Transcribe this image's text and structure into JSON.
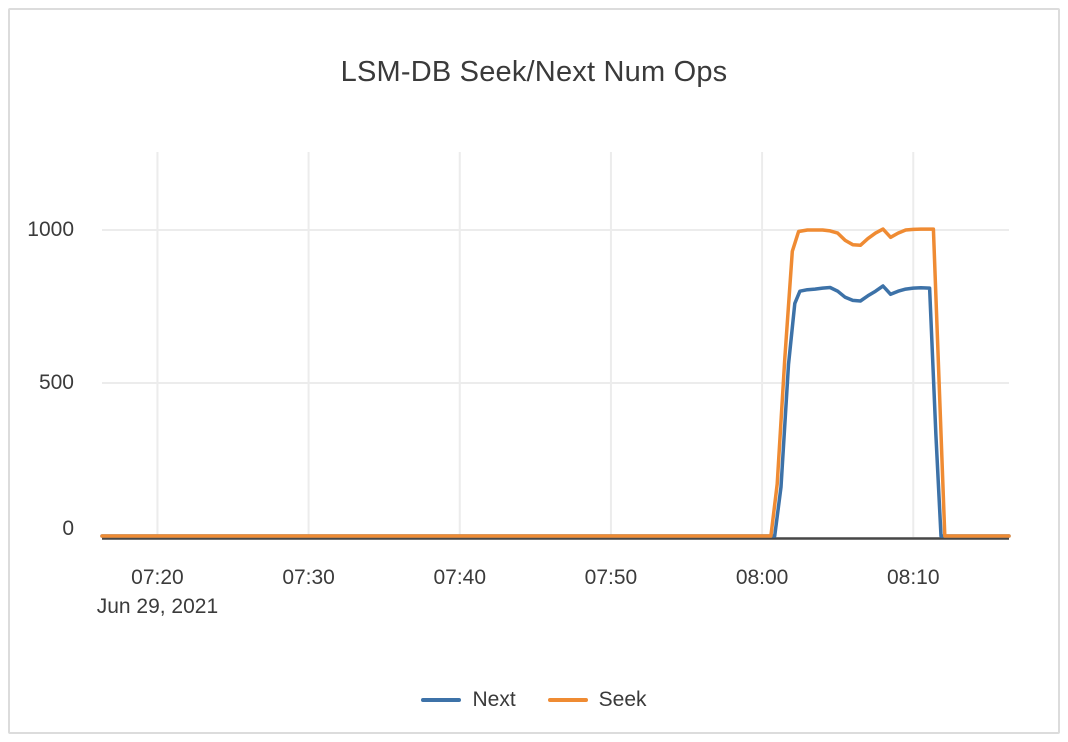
{
  "card": {
    "background": "#ffffff",
    "border_color": "#dcdcdc"
  },
  "colors": {
    "next_series": "#3D72A8",
    "seek_series": "#EF8B33",
    "grid_line": "#ececec",
    "zero_axis_line": "#474747",
    "text": "#3b3b3b"
  },
  "chart_data": {
    "type": "line",
    "title": "LSM-DB Seek/Next Num Ops",
    "xlabel": "",
    "ylabel": "",
    "grid": true,
    "legend_position": "bottom",
    "x_axis": {
      "domain": [
        "07:16:20",
        "08:16:20"
      ],
      "tick_labels": [
        "07:20",
        "07:30",
        "07:40",
        "07:50",
        "08:00",
        "08:10"
      ],
      "date_label": "Jun 29, 2021"
    },
    "y_axis": {
      "ticks": [
        0,
        500,
        1000
      ],
      "ylim": [
        0,
        1250
      ]
    },
    "series": [
      {
        "name": "Next",
        "color": "#3D72A8",
        "points": [
          [
            "07:16:20",
            0
          ],
          [
            "07:30:00",
            0
          ],
          [
            "07:45:00",
            0
          ],
          [
            "08:00:00",
            0
          ],
          [
            "08:00:50",
            0
          ],
          [
            "08:01:15",
            160
          ],
          [
            "08:01:45",
            560
          ],
          [
            "08:02:10",
            760
          ],
          [
            "08:02:30",
            800
          ],
          [
            "08:03:00",
            805
          ],
          [
            "08:03:30",
            807
          ],
          [
            "08:04:00",
            810
          ],
          [
            "08:04:30",
            812
          ],
          [
            "08:05:00",
            800
          ],
          [
            "08:05:30",
            780
          ],
          [
            "08:06:00",
            770
          ],
          [
            "08:06:30",
            768
          ],
          [
            "08:07:00",
            785
          ],
          [
            "08:07:30",
            800
          ],
          [
            "08:08:00",
            817
          ],
          [
            "08:08:30",
            790
          ],
          [
            "08:09:00",
            800
          ],
          [
            "08:09:30",
            807
          ],
          [
            "08:10:00",
            810
          ],
          [
            "08:10:30",
            811
          ],
          [
            "08:11:05",
            810
          ],
          [
            "08:11:30",
            330
          ],
          [
            "08:11:50",
            0
          ],
          [
            "08:13:00",
            0
          ],
          [
            "08:16:20",
            0
          ]
        ]
      },
      {
        "name": "Seek",
        "color": "#EF8B33",
        "points": [
          [
            "07:16:20",
            0
          ],
          [
            "07:30:00",
            0
          ],
          [
            "07:45:00",
            0
          ],
          [
            "08:00:00",
            0
          ],
          [
            "08:00:35",
            0
          ],
          [
            "08:01:00",
            170
          ],
          [
            "08:01:30",
            580
          ],
          [
            "08:02:00",
            930
          ],
          [
            "08:02:25",
            995
          ],
          [
            "08:03:00",
            1000
          ],
          [
            "08:03:30",
            1000
          ],
          [
            "08:04:00",
            1000
          ],
          [
            "08:04:30",
            997
          ],
          [
            "08:05:00",
            990
          ],
          [
            "08:05:30",
            966
          ],
          [
            "08:06:00",
            952
          ],
          [
            "08:06:30",
            950
          ],
          [
            "08:07:00",
            972
          ],
          [
            "08:07:30",
            990
          ],
          [
            "08:08:00",
            1003
          ],
          [
            "08:08:30",
            976
          ],
          [
            "08:09:00",
            990
          ],
          [
            "08:09:30",
            1000
          ],
          [
            "08:10:00",
            1002
          ],
          [
            "08:10:30",
            1003
          ],
          [
            "08:11:20",
            1003
          ],
          [
            "08:11:45",
            450
          ],
          [
            "08:12:05",
            0
          ],
          [
            "08:13:00",
            0
          ],
          [
            "08:16:20",
            0
          ]
        ]
      }
    ]
  }
}
